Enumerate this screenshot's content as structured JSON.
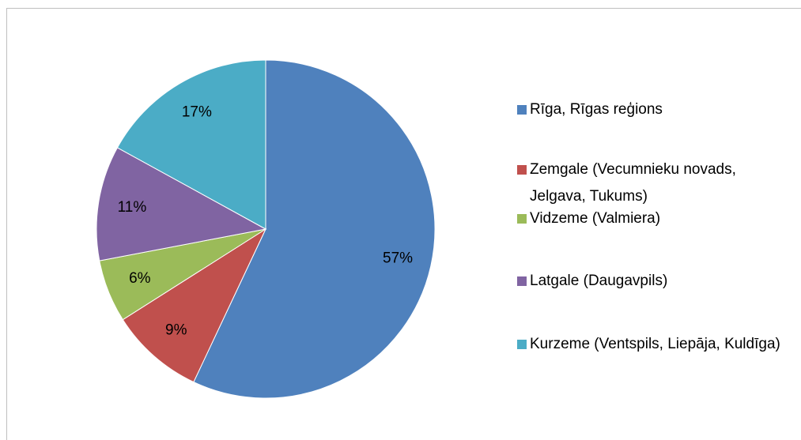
{
  "chart_data": {
    "type": "pie",
    "categories": [
      "Rīga, Rīgas reģions",
      "Zemgale (Vecumnieku novads, Jelgava, Tukums)",
      "Vidzeme (Valmiera)",
      "Latgale (Daugavpils)",
      "Kurzeme (Ventspils, Liepāja, Kuldīga)"
    ],
    "values": [
      57,
      9,
      6,
      11,
      17
    ],
    "value_labels": [
      "57%",
      "9%",
      "6%",
      "11%",
      "17%"
    ],
    "colors": [
      "#4f81bd",
      "#c0504d",
      "#9bbb59",
      "#8064a2",
      "#4bacc6"
    ],
    "legend": "right"
  }
}
